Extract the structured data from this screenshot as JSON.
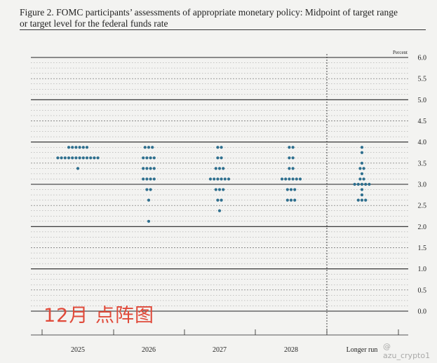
{
  "figure": {
    "caption_line1": "Figure 2. FOMC participants’ assessments of appropriate monetary policy: Midpoint of target range",
    "caption_line2": "or target level for the federal funds rate"
  },
  "overlay_text": "12月 点阵图",
  "watermark_text": "@ azu_crypto1",
  "colors": {
    "dot": "#2e6f8e",
    "major_line": "#222222",
    "minor_line": "#555555"
  },
  "chart_data": {
    "type": "scatter",
    "subtype": "dot-plot",
    "unit_label": "Percent",
    "ylim": [
      0,
      6.0
    ],
    "y_ticks": [
      "0.0",
      "0.5",
      "1.0",
      "1.5",
      "2.0",
      "2.5",
      "3.0",
      "3.5",
      "4.0",
      "4.5",
      "5.0",
      "5.5",
      "6.0"
    ],
    "categories": [
      "2025",
      "2026",
      "2027",
      "2028",
      "Longer run"
    ],
    "separator_before_category": "Longer run",
    "gridlines": "dashed minor lines every 0.125, solid lines at whole percents",
    "series": [
      {
        "category": "2025",
        "points": [
          {
            "y": 3.875,
            "count": 6
          },
          {
            "y": 3.625,
            "count": 12
          },
          {
            "y": 3.375,
            "count": 1
          }
        ]
      },
      {
        "category": "2026",
        "points": [
          {
            "y": 3.875,
            "count": 3
          },
          {
            "y": 3.625,
            "count": 4
          },
          {
            "y": 3.375,
            "count": 4
          },
          {
            "y": 3.125,
            "count": 4
          },
          {
            "y": 2.875,
            "count": 2
          },
          {
            "y": 2.625,
            "count": 1
          },
          {
            "y": 2.125,
            "count": 1
          }
        ]
      },
      {
        "category": "2027",
        "points": [
          {
            "y": 3.875,
            "count": 2
          },
          {
            "y": 3.625,
            "count": 2
          },
          {
            "y": 3.375,
            "count": 3
          },
          {
            "y": 3.125,
            "count": 6
          },
          {
            "y": 2.875,
            "count": 3
          },
          {
            "y": 2.625,
            "count": 2
          },
          {
            "y": 2.375,
            "count": 1
          }
        ]
      },
      {
        "category": "2028",
        "points": [
          {
            "y": 3.875,
            "count": 2
          },
          {
            "y": 3.625,
            "count": 2
          },
          {
            "y": 3.375,
            "count": 2
          },
          {
            "y": 3.125,
            "count": 6
          },
          {
            "y": 2.875,
            "count": 3
          },
          {
            "y": 2.625,
            "count": 3
          }
        ]
      },
      {
        "category": "Longer run",
        "points": [
          {
            "y": 3.875,
            "count": 1
          },
          {
            "y": 3.75,
            "count": 1
          },
          {
            "y": 3.5,
            "count": 1
          },
          {
            "y": 3.375,
            "count": 2
          },
          {
            "y": 3.25,
            "count": 1
          },
          {
            "y": 3.125,
            "count": 2
          },
          {
            "y": 3.0,
            "count": 5
          },
          {
            "y": 2.875,
            "count": 1
          },
          {
            "y": 2.75,
            "count": 1
          },
          {
            "y": 2.625,
            "count": 3
          }
        ]
      }
    ]
  }
}
